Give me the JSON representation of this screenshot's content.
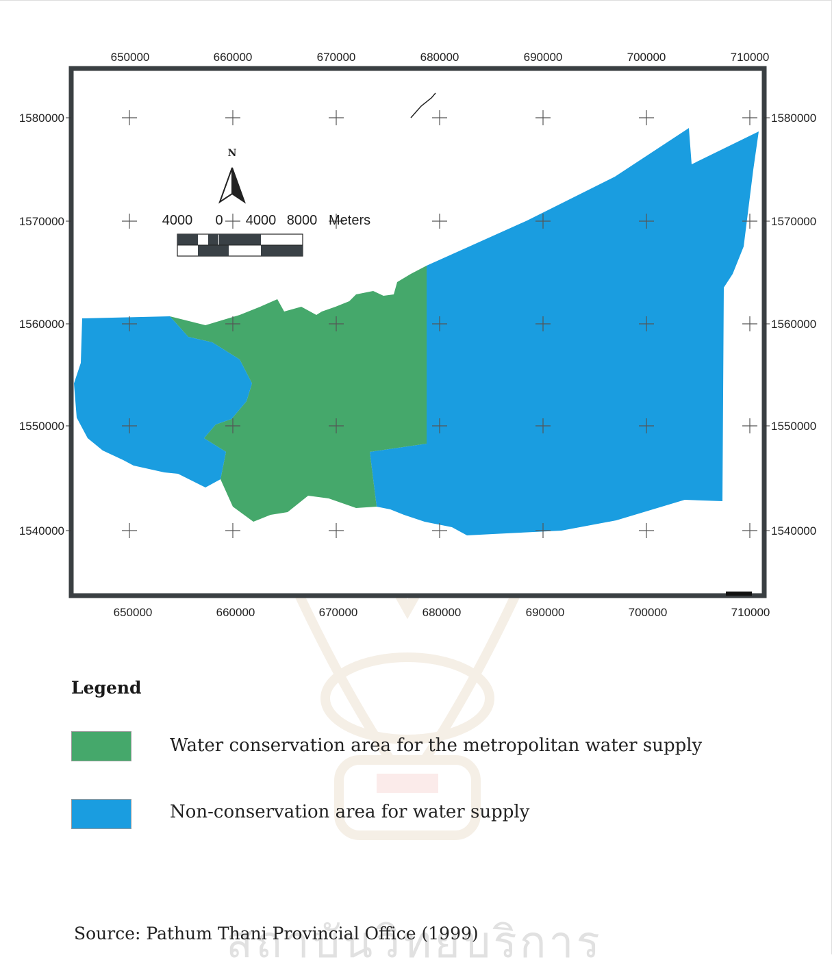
{
  "map": {
    "x_ticks_top": [
      "650000",
      "660000",
      "670000",
      "680000",
      "690000",
      "700000",
      "710000"
    ],
    "x_ticks_bottom": [
      "650000",
      "660000",
      "670000",
      "680000",
      "690000",
      "700000",
      "710000"
    ],
    "y_ticks_left": [
      "1580000",
      "1570000",
      "1560000",
      "1550000",
      "1540000"
    ],
    "y_ticks_right": [
      "1580000",
      "1570000",
      "1560000",
      "1550000",
      "1540000"
    ],
    "north_label": "N",
    "scale_bar": {
      "labels": [
        "4000",
        "0",
        "4000",
        "8000",
        "Meters"
      ]
    },
    "colors": {
      "conservation": "#45a86b",
      "non_conservation": "#1a9de0",
      "frame": "#3a3f42"
    }
  },
  "legend": {
    "title": "Legend",
    "items": [
      {
        "label": "Water conservation area for the metropolitan water supply",
        "color": "#45a86b"
      },
      {
        "label": "Non-conservation area for water supply",
        "color": "#1a9de0"
      }
    ]
  },
  "source": "Source: Pathum Thani Provincial Office (1999)"
}
